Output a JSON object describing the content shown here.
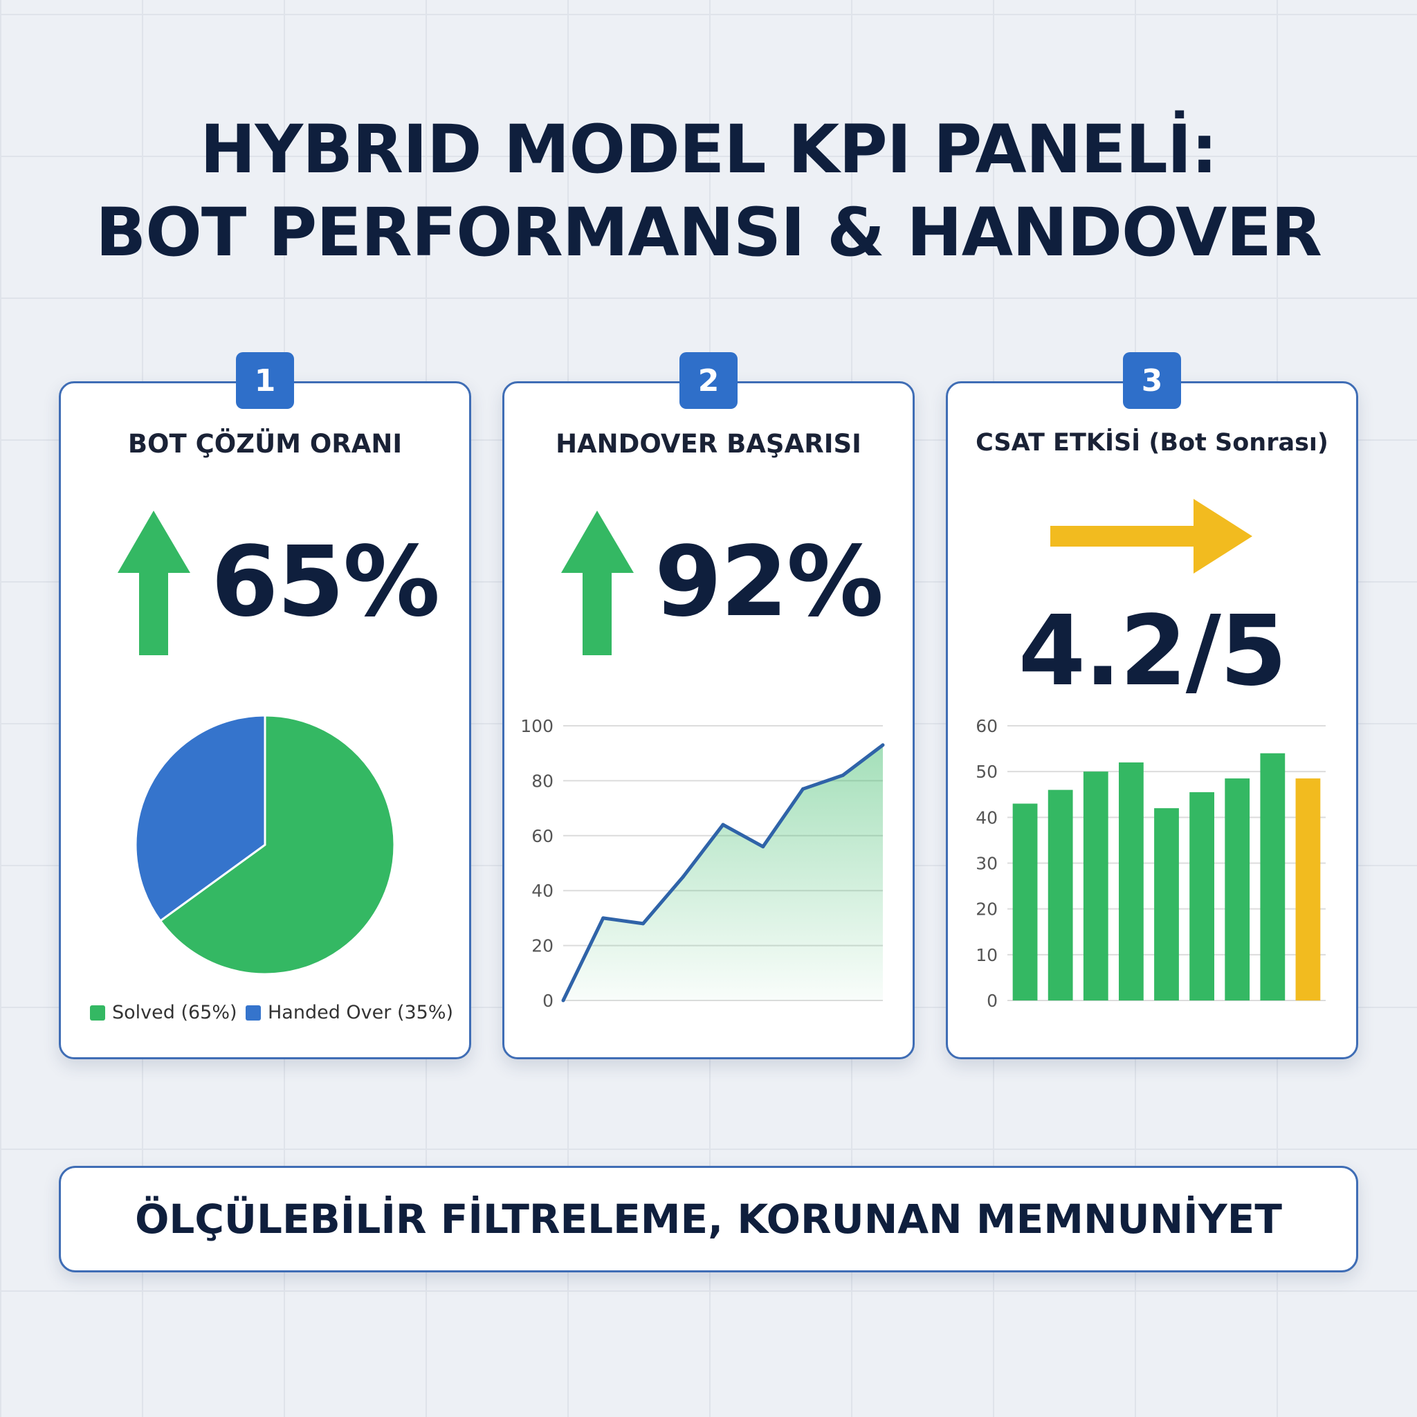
{
  "title": {
    "line1": "HYBRID MODEL KPI PANELİ:",
    "line2": "BOT PERFORMANSI & HANDOVER"
  },
  "colors": {
    "green": "#34b863",
    "blue": "#3574cc",
    "yellow": "#f2bb1f",
    "line": "#2f63a8",
    "navy": "#0f1f3d"
  },
  "cards": [
    {
      "badge": "1",
      "title": "BOT ÇÖZÜM ORANI",
      "value": "65%",
      "trend_icon": "arrow-up-icon"
    },
    {
      "badge": "2",
      "title": "HANDOVER BAŞARISI",
      "value": "92%",
      "trend_icon": "arrow-up-icon"
    },
    {
      "badge": "3",
      "title": "CSAT ETKİSİ (Bot Sonrası)",
      "value": "4.2/5",
      "trend_icon": "arrow-right-icon"
    }
  ],
  "banner": "ÖLÇÜLEBİLİR FİLTRELEME, KORUNAN MEMNUNİYET",
  "chart_data": [
    {
      "type": "pie",
      "slices": [
        {
          "name": "Solved (65%)",
          "value": 65,
          "color": "#34b863"
        },
        {
          "name": "Handed Over (35%)",
          "value": 35,
          "color": "#3574cc"
        }
      ],
      "legend": "bottom"
    },
    {
      "type": "area",
      "y": [
        0,
        30,
        28,
        45,
        64,
        56,
        77,
        82,
        93
      ],
      "ylim": [
        0,
        100
      ],
      "yticks": [
        "0",
        "20",
        "40",
        "60",
        "80",
        "100"
      ],
      "grid": true
    },
    {
      "type": "bar",
      "values": [
        43,
        46,
        50,
        52,
        42,
        45.5,
        48.5,
        54,
        48.5
      ],
      "colors": [
        "#34b863",
        "#34b863",
        "#34b863",
        "#34b863",
        "#34b863",
        "#34b863",
        "#34b863",
        "#34b863",
        "#f2bb1f"
      ],
      "ylim": [
        0,
        60
      ],
      "yticks": [
        "0",
        "10",
        "20",
        "30",
        "40",
        "50",
        "60"
      ],
      "grid": true
    }
  ]
}
